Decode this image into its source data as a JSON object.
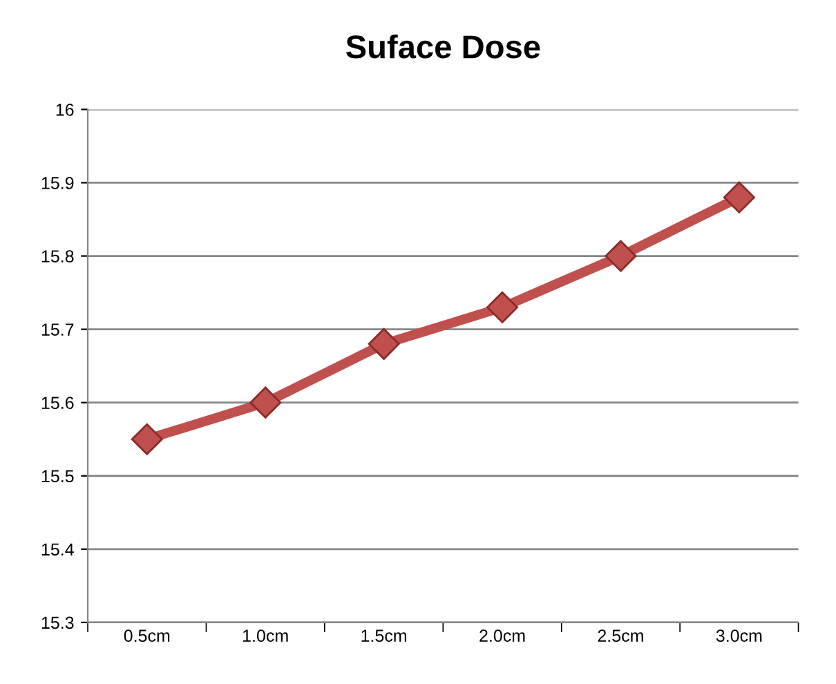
{
  "chart_data": {
    "type": "line",
    "title": "Suface Dose",
    "categories": [
      "0.5cm",
      "1.0cm",
      "1.5cm",
      "2.0cm",
      "2.5cm",
      "3.0cm"
    ],
    "series": [
      {
        "color": "#c0504d",
        "values": [
          15.55,
          15.6,
          15.68,
          15.73,
          15.8,
          15.88
        ]
      }
    ],
    "ylim": [
      15.3,
      16
    ],
    "yticks": [
      15.3,
      15.4,
      15.5,
      15.6,
      15.7,
      15.8,
      15.9,
      16
    ],
    "grid": "y",
    "marker": "diamond",
    "line_style": "solid"
  }
}
